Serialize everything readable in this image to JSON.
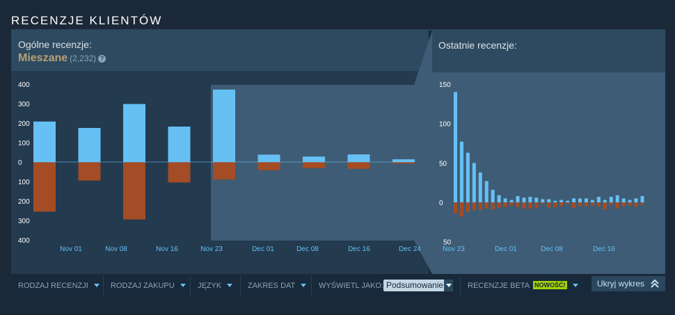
{
  "section_title": "RECENZJE KLIENTÓW",
  "overall": {
    "label": "Ogólne recenzje:",
    "rating": "Mieszane",
    "count": "(2,232)",
    "help_icon": "?"
  },
  "recent": {
    "label": "Ostatnie recenzje:"
  },
  "filters": {
    "review_type": "RODZAJ RECENZJI",
    "purchase_type": "RODZAJ ZAKUPU",
    "language": "JĘZYK",
    "date_range": "ZAKRES DAT",
    "display_as_label": "WYŚWIETL JAKO:",
    "display_as_value": "Podsumowanie",
    "beta": "RECENZJE BETA",
    "beta_badge": "NOWOŚĆ!",
    "hide_chart": "Ukryj wykres"
  },
  "colors": {
    "positive": "#66c0f4",
    "negative": "#a34c25",
    "rating": "#b9a074",
    "badge": "#a4d007"
  },
  "chart_data": [
    {
      "type": "bar",
      "name": "overall",
      "y_ticks_up": [
        "400",
        "300",
        "200",
        "100",
        "0"
      ],
      "y_ticks_down": [
        "100",
        "200",
        "300",
        "400"
      ],
      "ylim": [
        -400,
        400
      ],
      "x_tick_labels": [
        "Nov 01",
        "Nov 08",
        "Nov 16",
        "Nov 23",
        "Dec 01",
        "Dec 08",
        "Dec 16",
        "Dec 24"
      ],
      "positive": [
        208,
        175,
        298,
        182,
        372,
        38,
        28,
        39,
        14
      ],
      "negative": [
        -255,
        -95,
        -295,
        -105,
        -90,
        -42,
        -32,
        -35,
        -8
      ],
      "recent_window_start_index": 4
    },
    {
      "type": "bar",
      "name": "recent",
      "y_ticks_up": [
        "150",
        "100",
        "50",
        "0"
      ],
      "y_ticks_down": [
        "50"
      ],
      "ylim": [
        -50,
        150
      ],
      "x_tick_labels": [
        "Nov 23",
        "Dec 01",
        "Dec 08",
        "Dec 16"
      ],
      "positive": [
        140,
        77,
        63,
        50,
        38,
        27,
        16,
        9,
        5,
        3,
        8,
        6,
        7,
        6,
        4,
        4,
        2,
        3,
        2,
        5,
        5,
        5,
        3,
        7,
        3,
        7,
        9,
        5,
        3,
        5,
        8
      ],
      "negative": [
        -14,
        -18,
        -12,
        -10,
        -10,
        -8,
        -9,
        -7,
        -6,
        -4,
        -6,
        -8,
        -8,
        -7,
        -2,
        -7,
        -6,
        -5,
        -2,
        -7,
        -5,
        -5,
        -4,
        -6,
        -9,
        -3,
        -8,
        -5,
        -4,
        -6,
        -3
      ]
    }
  ]
}
